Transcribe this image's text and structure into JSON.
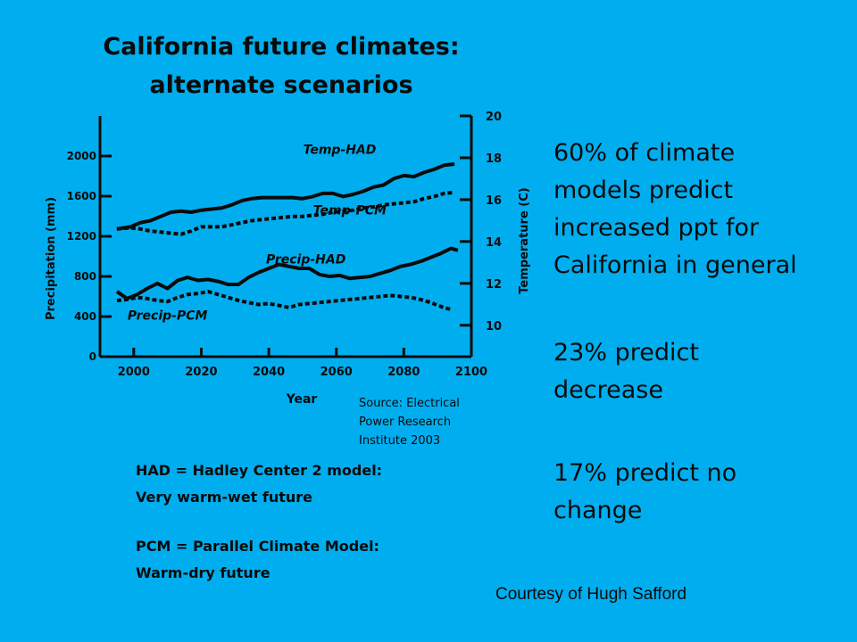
{
  "colors": {
    "background": "#00aeef",
    "ink": "#0a0a0a"
  },
  "slide": {
    "title_line1": "California future climates:",
    "title_line2": "alternate scenarios",
    "stats": [
      [
        "60% of climate",
        "models predict",
        "increased ppt for",
        "California in general"
      ],
      [
        "23% predict",
        "decrease"
      ],
      [
        "17% predict no",
        "change"
      ]
    ],
    "legend": {
      "had_line1": "HAD = Hadley Center 2 model:",
      "had_line2": "Very warm-wet future",
      "pcm_line1": "PCM = Parallel Climate Model:",
      "pcm_line2": "Warm-dry future"
    },
    "source_lines": [
      "Source: Electrical",
      "Power Research",
      "Institute 2003"
    ],
    "courtesy": "Courtesy of Hugh Safford"
  },
  "chart_data": {
    "type": "line",
    "title": "",
    "xlabel": "Year",
    "ylabel_left": "Precipitation (mm)",
    "ylabel_right": "Temperature (C)",
    "xlim": [
      1990,
      2100
    ],
    "ylim_left": [
      0,
      2400
    ],
    "ylim_right": [
      8.5,
      20
    ],
    "x_ticks": [
      2000,
      2020,
      2040,
      2060,
      2080,
      2100
    ],
    "y_left_ticks": [
      0,
      400,
      800,
      1200,
      1600,
      2000
    ],
    "y_right_ticks": [
      10,
      12,
      14,
      16,
      18,
      20
    ],
    "grid": false,
    "series": [
      {
        "name": "Temp-HAD",
        "axis": "right",
        "style": "solid",
        "x": [
          1995,
          1999,
          2002,
          2005,
          2008,
          2011,
          2014,
          2017,
          2020,
          2023,
          2026,
          2029,
          2032,
          2035,
          2038,
          2041,
          2044,
          2047,
          2050,
          2053,
          2056,
          2059,
          2062,
          2065,
          2068,
          2071,
          2074,
          2077,
          2080,
          2083,
          2086,
          2089,
          2092,
          2095
        ],
        "y": [
          14.6,
          14.7,
          14.9,
          15.0,
          15.2,
          15.4,
          15.45,
          15.4,
          15.5,
          15.55,
          15.6,
          15.75,
          15.95,
          16.05,
          16.1,
          16.1,
          16.1,
          16.1,
          16.05,
          16.15,
          16.3,
          16.3,
          16.15,
          16.25,
          16.4,
          16.6,
          16.7,
          17.0,
          17.15,
          17.1,
          17.3,
          17.45,
          17.65,
          17.7
        ]
      },
      {
        "name": "Temp-PCM",
        "axis": "right",
        "style": "dashed",
        "x": [
          1995,
          1999,
          2002,
          2005,
          2008,
          2011,
          2014,
          2017,
          2020,
          2023,
          2026,
          2029,
          2032,
          2035,
          2038,
          2041,
          2044,
          2047,
          2050,
          2053,
          2056,
          2059,
          2062,
          2065,
          2068,
          2071,
          2074,
          2077,
          2080,
          2083,
          2086,
          2089,
          2092,
          2095
        ],
        "y": [
          14.6,
          14.65,
          14.6,
          14.5,
          14.45,
          14.4,
          14.35,
          14.5,
          14.7,
          14.7,
          14.7,
          14.8,
          14.9,
          15.0,
          15.05,
          15.1,
          15.15,
          15.2,
          15.2,
          15.25,
          15.3,
          15.4,
          15.45,
          15.5,
          15.6,
          15.65,
          15.75,
          15.8,
          15.85,
          15.9,
          16.05,
          16.15,
          16.3,
          16.35
        ]
      },
      {
        "name": "Precip-HAD",
        "axis": "left",
        "style": "solid",
        "x": [
          1995,
          1998,
          2001,
          2004,
          2007,
          2010,
          2013,
          2016,
          2019,
          2022,
          2025,
          2028,
          2031,
          2034,
          2037,
          2040,
          2043,
          2046,
          2049,
          2052,
          2055,
          2058,
          2061,
          2064,
          2067,
          2070,
          2073,
          2076,
          2079,
          2082,
          2085,
          2088,
          2091,
          2094,
          2096
        ],
        "y": [
          650,
          580,
          620,
          680,
          730,
          680,
          760,
          790,
          760,
          770,
          750,
          720,
          720,
          790,
          840,
          880,
          920,
          900,
          880,
          880,
          820,
          800,
          810,
          780,
          790,
          800,
          830,
          860,
          900,
          920,
          950,
          990,
          1030,
          1080,
          1060
        ]
      },
      {
        "name": "Precip-PCM",
        "axis": "left",
        "style": "dashed",
        "x": [
          1995,
          1998,
          2001,
          2004,
          2007,
          2010,
          2013,
          2016,
          2019,
          2022,
          2025,
          2028,
          2031,
          2034,
          2037,
          2040,
          2043,
          2046,
          2049,
          2052,
          2055,
          2058,
          2061,
          2064,
          2067,
          2070,
          2073,
          2076,
          2079,
          2082,
          2085,
          2088,
          2091,
          2094
        ],
        "y": [
          560,
          570,
          590,
          580,
          560,
          550,
          590,
          620,
          630,
          650,
          620,
          590,
          560,
          540,
          520,
          530,
          510,
          490,
          520,
          530,
          540,
          550,
          560,
          570,
          580,
          590,
          600,
          610,
          600,
          590,
          570,
          540,
          500,
          470
        ]
      }
    ],
    "annotations": [
      {
        "text": "Temp-HAD",
        "x": 2061,
        "axis": "right",
        "y": 18.2
      },
      {
        "text": "Temp-PCM",
        "x": 2064,
        "axis": "right",
        "y": 15.3
      },
      {
        "text": "Precip-HAD",
        "x": 2051,
        "axis": "left",
        "y": 930
      },
      {
        "text": "Precip-PCM",
        "x": 2010,
        "axis": "left",
        "y": 370
      }
    ]
  }
}
